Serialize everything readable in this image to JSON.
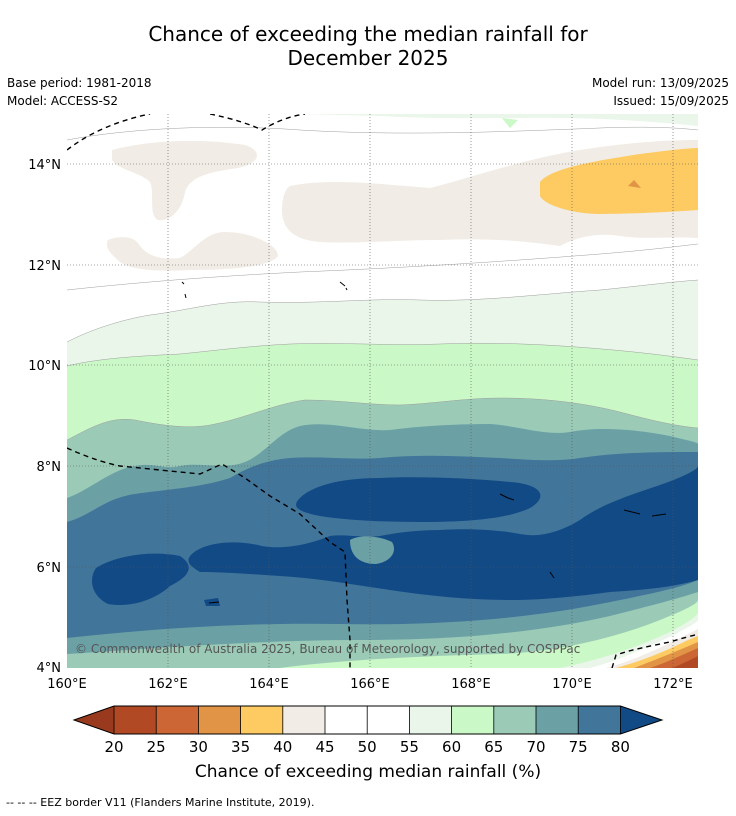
{
  "title_line1": "Chance of exceeding the median rainfall for",
  "title_line2": "December 2025",
  "base_period": "Base period: 1981-2018",
  "model": "Model: ACCESS-S2",
  "model_run": "Model run: 13/09/2025",
  "issued": "Issued: 15/09/2025",
  "copyright": "© Commonwealth of Australia 2025, Bureau of Meteorology, supported by COSPPac",
  "colorbar_label": "Chance of exceeding median rainfall (%)",
  "footer": "--  --  -- EEZ border V11 (Flanders Marine Institute, 2019).",
  "lat_ticks": [
    "4°N",
    "6°N",
    "8°N",
    "10°N",
    "12°N",
    "14°N"
  ],
  "lon_ticks": [
    "160°E",
    "162°E",
    "164°E",
    "166°E",
    "168°E",
    "170°E",
    "172°E"
  ],
  "colorbar_ticks": [
    "20",
    "25",
    "30",
    "35",
    "40",
    "45",
    "50",
    "55",
    "60",
    "65",
    "70",
    "75",
    "80"
  ],
  "colors": {
    "lt20": "#993a1e",
    "c20": "#b14a24",
    "c25": "#cc6634",
    "c30": "#e19446",
    "c35": "#fdcb62",
    "c40": "#f1ece5",
    "c45": "#ffffff",
    "c50": "#ffffff",
    "c55": "#eaf6ea",
    "c60": "#caf8c6",
    "c65": "#9bcbb7",
    "c70": "#6ba1a5",
    "c75": "#41759a",
    "gt80": "#124a86"
  }
}
